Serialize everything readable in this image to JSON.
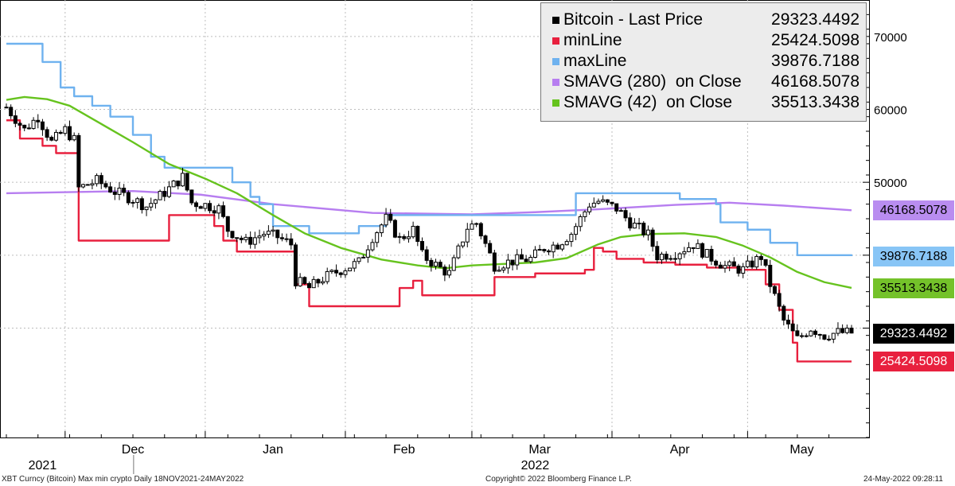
{
  "chart_data": {
    "type": "candlestick+line",
    "x_range": [
      "2021-11-18",
      "2022-05-24"
    ],
    "ylim": [
      15000,
      75000
    ],
    "yticks": [
      30000,
      40000,
      50000,
      60000,
      70000
    ],
    "ytick_labels": [
      "",
      "",
      "50000",
      "60000",
      "70000"
    ],
    "month_labels": [
      {
        "label": "Dec",
        "date": "2021-12-16"
      },
      {
        "label": "Jan",
        "date": "2022-01-16"
      },
      {
        "label": "Feb",
        "date": "2022-02-14"
      },
      {
        "label": "Mar",
        "date": "2022-03-16"
      },
      {
        "label": "Apr",
        "date": "2022-04-16"
      },
      {
        "label": "May",
        "date": "2022-05-13"
      }
    ],
    "year_labels": [
      {
        "label": "2021",
        "date": "2021-11-26"
      },
      {
        "label": "2022",
        "date": "2022-03-15"
      }
    ],
    "legend": [
      {
        "name": "Bitcoin - Last Price",
        "value": "29323.4492",
        "color": "#000000"
      },
      {
        "name": "minLine",
        "value": "25424.5098",
        "color": "#e8203e"
      },
      {
        "name": "maxLine",
        "value": "39876.7188",
        "color": "#6fb2ef"
      },
      {
        "name": "SMAVG (280)  on Close",
        "value": "46168.5078",
        "color": "#b77ef0"
      },
      {
        "name": "SMAVG (42)  on Close",
        "value": "35513.3438",
        "color": "#66c31e"
      }
    ],
    "value_tags": [
      {
        "text": "46168.5078",
        "value": 46168.5078,
        "bg": "#b98df0",
        "fg": "#000000"
      },
      {
        "text": "39876.7188",
        "value": 39876.7188,
        "bg": "#88c5f6",
        "fg": "#000000"
      },
      {
        "text": "35513.3438",
        "value": 35513.3438,
        "bg": "#74c22a",
        "fg": "#000000"
      },
      {
        "text": "29323.4492",
        "value": 29323.4492,
        "bg": "#000000",
        "fg": "#ffffff"
      },
      {
        "text": "25424.5098",
        "value": 25424.5098,
        "bg": "#e8203e",
        "fg": "#ffffff"
      }
    ],
    "series": [
      {
        "name": "Bitcoin - Last Price",
        "kind": "candlestick",
        "color": "#000000",
        "anchors": [
          [
            "2021-11-18",
            60300
          ],
          [
            "2021-11-22",
            57200
          ],
          [
            "2021-11-25",
            59000
          ],
          [
            "2021-11-28",
            55500
          ],
          [
            "2021-12-01",
            57200
          ],
          [
            "2021-12-03",
            55800
          ],
          [
            "2021-12-04",
            49200
          ],
          [
            "2021-12-08",
            50200
          ],
          [
            "2021-12-12",
            48700
          ],
          [
            "2021-12-16",
            47700
          ],
          [
            "2021-12-19",
            46700
          ],
          [
            "2021-12-23",
            48600
          ],
          [
            "2021-12-27",
            50700
          ],
          [
            "2021-12-29",
            47200
          ],
          [
            "2022-01-01",
            46900
          ],
          [
            "2022-01-04",
            46400
          ],
          [
            "2022-01-06",
            43500
          ],
          [
            "2022-01-10",
            41800
          ],
          [
            "2022-01-14",
            43000
          ],
          [
            "2022-01-17",
            42500
          ],
          [
            "2022-01-20",
            41500
          ],
          [
            "2022-01-21",
            36500
          ],
          [
            "2022-01-24",
            35500
          ],
          [
            "2022-01-27",
            36800
          ],
          [
            "2022-01-31",
            38000
          ],
          [
            "2022-02-04",
            39000
          ],
          [
            "2022-02-07",
            42500
          ],
          [
            "2022-02-10",
            45000
          ],
          [
            "2022-02-13",
            42200
          ],
          [
            "2022-02-16",
            43500
          ],
          [
            "2022-02-18",
            40000
          ],
          [
            "2022-02-22",
            38200
          ],
          [
            "2022-02-24",
            37500
          ],
          [
            "2022-02-28",
            43800
          ],
          [
            "2022-03-02",
            44400
          ],
          [
            "2022-03-06",
            38600
          ],
          [
            "2022-03-10",
            39200
          ],
          [
            "2022-03-14",
            39500
          ],
          [
            "2022-03-17",
            41000
          ],
          [
            "2022-03-20",
            41500
          ],
          [
            "2022-03-23",
            43000
          ],
          [
            "2022-03-27",
            47000
          ],
          [
            "2022-03-29",
            47400
          ],
          [
            "2022-04-02",
            46400
          ],
          [
            "2022-04-05",
            44500
          ],
          [
            "2022-04-09",
            42800
          ],
          [
            "2022-04-11",
            39900
          ],
          [
            "2022-04-15",
            40300
          ],
          [
            "2022-04-19",
            41500
          ],
          [
            "2022-04-22",
            40000
          ],
          [
            "2022-04-26",
            38500
          ],
          [
            "2022-04-30",
            38000
          ],
          [
            "2022-05-04",
            39800
          ],
          [
            "2022-05-06",
            36000
          ],
          [
            "2022-05-09",
            31000
          ],
          [
            "2022-05-12",
            28500
          ],
          [
            "2022-05-15",
            30000
          ],
          [
            "2022-05-18",
            29000
          ],
          [
            "2022-05-21",
            29400
          ],
          [
            "2022-05-24",
            29323
          ]
        ]
      },
      {
        "name": "minLine",
        "kind": "step",
        "color": "#e8203e",
        "points": [
          [
            "2021-11-18",
            58500
          ],
          [
            "2021-11-21",
            56000
          ],
          [
            "2021-11-26",
            55000
          ],
          [
            "2021-11-29",
            54000
          ],
          [
            "2021-12-04",
            42000
          ],
          [
            "2021-12-24",
            45500
          ],
          [
            "2022-01-03",
            44000
          ],
          [
            "2022-01-05",
            42000
          ],
          [
            "2022-01-08",
            40500
          ],
          [
            "2022-01-21",
            36000
          ],
          [
            "2022-01-24",
            33000
          ],
          [
            "2022-02-13",
            35500
          ],
          [
            "2022-02-16",
            36500
          ],
          [
            "2022-02-18",
            34500
          ],
          [
            "2022-03-06",
            37000
          ],
          [
            "2022-03-15",
            37500
          ],
          [
            "2022-03-26",
            38000
          ],
          [
            "2022-03-28",
            41000
          ],
          [
            "2022-03-30",
            40500
          ],
          [
            "2022-04-02",
            39500
          ],
          [
            "2022-04-08",
            39000
          ],
          [
            "2022-04-15",
            38700
          ],
          [
            "2022-04-22",
            38300
          ],
          [
            "2022-04-29",
            38000
          ],
          [
            "2022-05-05",
            36000
          ],
          [
            "2022-05-08",
            32500
          ],
          [
            "2022-05-11",
            28000
          ],
          [
            "2022-05-12",
            25424.5098
          ],
          [
            "2022-05-24",
            25424.5098
          ]
        ]
      },
      {
        "name": "maxLine",
        "kind": "step",
        "color": "#6fb2ef",
        "points": [
          [
            "2021-11-18",
            69000
          ],
          [
            "2021-11-26",
            66500
          ],
          [
            "2021-11-30",
            63000
          ],
          [
            "2021-12-03",
            61800
          ],
          [
            "2021-12-07",
            60500
          ],
          [
            "2021-12-11",
            59000
          ],
          [
            "2021-12-16",
            56500
          ],
          [
            "2021-12-20",
            53500
          ],
          [
            "2021-12-23",
            52000
          ],
          [
            "2022-01-07",
            50000
          ],
          [
            "2022-01-11",
            48000
          ],
          [
            "2022-01-13",
            47000
          ],
          [
            "2022-01-16",
            44000
          ],
          [
            "2022-01-24",
            43000
          ],
          [
            "2022-02-04",
            44000
          ],
          [
            "2022-02-10",
            45500
          ],
          [
            "2022-03-03",
            45500
          ],
          [
            "2022-03-24",
            48500
          ],
          [
            "2022-04-03",
            48500
          ],
          [
            "2022-04-16",
            47700
          ],
          [
            "2022-04-24",
            47000
          ],
          [
            "2022-04-25",
            44500
          ],
          [
            "2022-05-01",
            43500
          ],
          [
            "2022-05-06",
            41700
          ],
          [
            "2022-05-12",
            40000
          ],
          [
            "2022-05-24",
            39876.7188
          ]
        ]
      },
      {
        "name": "SMAVG (280)  on Close",
        "kind": "line",
        "color": "#b77ef0",
        "points": [
          [
            "2021-11-18",
            48500
          ],
          [
            "2021-12-16",
            48800
          ],
          [
            "2021-12-31",
            48300
          ],
          [
            "2022-01-16",
            47000
          ],
          [
            "2022-02-07",
            45800
          ],
          [
            "2022-03-01",
            45600
          ],
          [
            "2022-03-15",
            45900
          ],
          [
            "2022-03-29",
            46300
          ],
          [
            "2022-04-15",
            46900
          ],
          [
            "2022-04-27",
            47200
          ],
          [
            "2022-05-09",
            46800
          ],
          [
            "2022-05-24",
            46168.5078
          ]
        ]
      },
      {
        "name": "SMAVG (42)  on Close",
        "kind": "line",
        "color": "#66c31e",
        "points": [
          [
            "2021-11-18",
            61300
          ],
          [
            "2021-11-22",
            61700
          ],
          [
            "2021-11-27",
            61400
          ],
          [
            "2021-12-02",
            60500
          ],
          [
            "2021-12-09",
            58000
          ],
          [
            "2021-12-16",
            55500
          ],
          [
            "2021-12-24",
            52500
          ],
          [
            "2022-01-01",
            50500
          ],
          [
            "2022-01-08",
            48500
          ],
          [
            "2022-01-16",
            45500
          ],
          [
            "2022-01-23",
            43000
          ],
          [
            "2022-01-31",
            41000
          ],
          [
            "2022-02-09",
            39400
          ],
          [
            "2022-02-17",
            38600
          ],
          [
            "2022-02-23",
            38200
          ],
          [
            "2022-03-01",
            38600
          ],
          [
            "2022-03-08",
            38800
          ],
          [
            "2022-03-15",
            39000
          ],
          [
            "2022-03-22",
            39600
          ],
          [
            "2022-03-29",
            41500
          ],
          [
            "2022-04-03",
            42500
          ],
          [
            "2022-04-09",
            42900
          ],
          [
            "2022-04-17",
            43000
          ],
          [
            "2022-04-24",
            42500
          ],
          [
            "2022-04-30",
            41300
          ],
          [
            "2022-05-06",
            39700
          ],
          [
            "2022-05-12",
            37700
          ],
          [
            "2022-05-18",
            36300
          ],
          [
            "2022-05-24",
            35513.3438
          ]
        ]
      }
    ]
  },
  "footer": {
    "left": "XBT Curncy (Bitcoin) Max min crypto  Daily 18NOV2021-24MAY2022",
    "center": "Copyright© 2022 Bloomberg Finance L.P.",
    "right": "24-May-2022 09:28:11"
  }
}
